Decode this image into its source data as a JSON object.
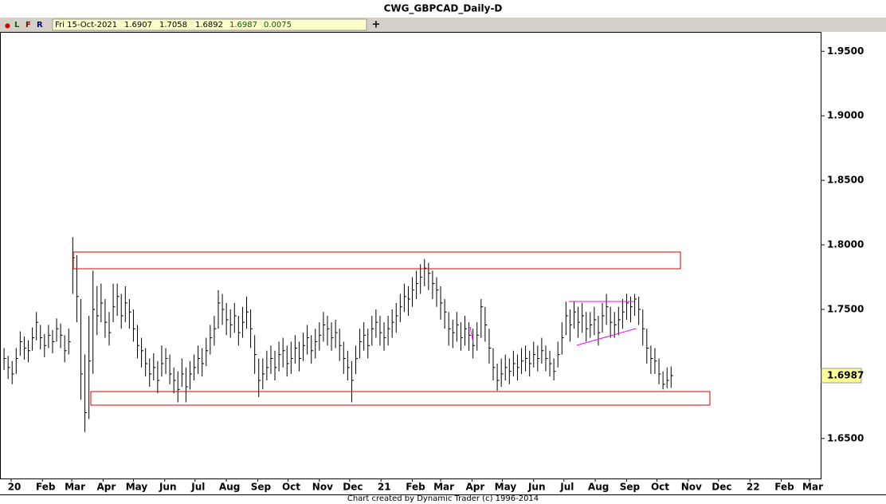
{
  "title": "CWG_GBPCAD_Daily-D",
  "toolbar": {
    "dot": "●",
    "buttons": [
      "L",
      "F",
      "R"
    ],
    "add": "+"
  },
  "info": {
    "date": "Fri 15-Oct-2021",
    "open": 1.6907,
    "high": 1.7058,
    "low": 1.6892,
    "close": 1.6987,
    "change": 0.0075
  },
  "footer": "Chart created by Dynamic Trader  (c) 1996-2014",
  "chart_data": {
    "type": "ohlc",
    "color": "#000000",
    "x": [
      -7,
      -3,
      1,
      5,
      9,
      13,
      17,
      21,
      25,
      29,
      33,
      37,
      41,
      45,
      49,
      53,
      57,
      61,
      65,
      69,
      73,
      77,
      81,
      85,
      89,
      93,
      97,
      101,
      105,
      109,
      113,
      117,
      121,
      125,
      129,
      133,
      137,
      141,
      145,
      149,
      153,
      157,
      161,
      165,
      169,
      173,
      177,
      181,
      185,
      189,
      193,
      197,
      201,
      205,
      209,
      213,
      217,
      221,
      225,
      229,
      233,
      237,
      241,
      245,
      249,
      253,
      257,
      261,
      265,
      269,
      273,
      277,
      281,
      285,
      289,
      293,
      297,
      301,
      305,
      309,
      313,
      317,
      321,
      325,
      329,
      333,
      337,
      341,
      345,
      349,
      353,
      357,
      361,
      365,
      369,
      373,
      377,
      381,
      385,
      389,
      393,
      397,
      401,
      405,
      409,
      413,
      417,
      421,
      425,
      429,
      433,
      437,
      441,
      445,
      449,
      453,
      457,
      461,
      465,
      469,
      473,
      477,
      481,
      485,
      489,
      493,
      497,
      501,
      505,
      509,
      513,
      517,
      521,
      525,
      529,
      533,
      537,
      541,
      545,
      549,
      553,
      557,
      561,
      565,
      569,
      573,
      577,
      581,
      585,
      589,
      593,
      597,
      601,
      605,
      609,
      613,
      617,
      621,
      625,
      629,
      633,
      637,
      641,
      645,
      649,
      653
    ],
    "high": [
      1.72,
      1.714,
      1.71,
      1.72,
      1.733,
      1.729,
      1.726,
      1.736,
      1.748,
      1.738,
      1.731,
      1.738,
      1.734,
      1.743,
      1.739,
      1.73,
      1.735,
      1.806,
      1.792,
      1.758,
      1.715,
      1.745,
      1.78,
      1.768,
      1.77,
      1.758,
      1.748,
      1.77,
      1.77,
      1.762,
      1.768,
      1.758,
      1.75,
      1.738,
      1.728,
      1.72,
      1.712,
      1.716,
      1.71,
      1.722,
      1.72,
      1.715,
      1.705,
      1.702,
      1.712,
      1.705,
      1.71,
      1.715,
      1.722,
      1.72,
      1.728,
      1.738,
      1.745,
      1.765,
      1.762,
      1.755,
      1.75,
      1.755,
      1.745,
      1.752,
      1.76,
      1.75,
      1.73,
      1.712,
      1.712,
      1.718,
      1.722,
      1.718,
      1.725,
      1.728,
      1.722,
      1.725,
      1.73,
      1.725,
      1.732,
      1.738,
      1.73,
      1.735,
      1.74,
      1.748,
      1.745,
      1.74,
      1.742,
      1.735,
      1.725,
      1.718,
      1.71,
      1.722,
      1.735,
      1.74,
      1.735,
      1.745,
      1.75,
      1.745,
      1.74,
      1.745,
      1.75,
      1.755,
      1.762,
      1.77,
      1.768,
      1.775,
      1.78,
      1.785,
      1.789,
      1.786,
      1.78,
      1.775,
      1.768,
      1.758,
      1.748,
      1.742,
      1.748,
      1.74,
      1.745,
      1.74,
      1.735,
      1.74,
      1.758,
      1.752,
      1.735,
      1.72,
      1.708,
      1.712,
      1.715,
      1.712,
      1.718,
      1.715,
      1.72,
      1.722,
      1.718,
      1.725,
      1.722,
      1.728,
      1.722,
      1.718,
      1.712,
      1.725,
      1.74,
      1.756,
      1.75,
      1.756,
      1.752,
      1.755,
      1.748,
      1.748,
      1.752,
      1.745,
      1.755,
      1.762,
      1.752,
      1.748,
      1.752,
      1.758,
      1.762,
      1.76,
      1.762,
      1.76,
      1.75,
      1.735,
      1.722,
      1.72,
      1.712,
      1.702,
      1.705,
      1.7058
    ],
    "low": [
      1.703,
      1.696,
      1.692,
      1.7,
      1.714,
      1.711,
      1.709,
      1.718,
      1.726,
      1.719,
      1.713,
      1.72,
      1.716,
      1.725,
      1.72,
      1.709,
      1.715,
      1.762,
      1.74,
      1.68,
      1.655,
      1.665,
      1.7,
      1.73,
      1.74,
      1.728,
      1.722,
      1.74,
      1.745,
      1.735,
      1.74,
      1.735,
      1.725,
      1.712,
      1.705,
      1.698,
      1.69,
      1.695,
      1.685,
      1.698,
      1.7,
      1.692,
      1.685,
      1.678,
      1.69,
      1.678,
      1.688,
      1.695,
      1.7,
      1.698,
      1.706,
      1.715,
      1.722,
      1.735,
      1.738,
      1.73,
      1.728,
      1.732,
      1.722,
      1.728,
      1.735,
      1.72,
      1.7,
      1.682,
      1.688,
      1.695,
      1.7,
      1.695,
      1.702,
      1.705,
      1.698,
      1.7,
      1.708,
      1.702,
      1.71,
      1.715,
      1.708,
      1.712,
      1.718,
      1.725,
      1.722,
      1.718,
      1.72,
      1.71,
      1.7,
      1.695,
      1.678,
      1.7,
      1.712,
      1.718,
      1.712,
      1.722,
      1.728,
      1.722,
      1.718,
      1.722,
      1.728,
      1.732,
      1.74,
      1.748,
      1.745,
      1.752,
      1.758,
      1.762,
      1.768,
      1.765,
      1.758,
      1.752,
      1.742,
      1.735,
      1.722,
      1.72,
      1.725,
      1.718,
      1.722,
      1.718,
      1.712,
      1.718,
      1.728,
      1.725,
      1.708,
      1.695,
      1.687,
      1.69,
      1.695,
      1.692,
      1.698,
      1.695,
      1.7,
      1.702,
      1.698,
      1.705,
      1.702,
      1.708,
      1.702,
      1.698,
      1.695,
      1.705,
      1.715,
      1.73,
      1.725,
      1.735,
      1.728,
      1.732,
      1.725,
      1.728,
      1.73,
      1.722,
      1.732,
      1.738,
      1.728,
      1.728,
      1.73,
      1.735,
      1.742,
      1.74,
      1.745,
      1.738,
      1.722,
      1.708,
      1.7,
      1.7,
      1.692,
      1.688,
      1.689,
      1.6892
    ],
    "close": [
      1.712,
      1.705,
      1.7,
      1.712,
      1.725,
      1.72,
      1.718,
      1.728,
      1.74,
      1.728,
      1.722,
      1.73,
      1.725,
      1.735,
      1.73,
      1.718,
      1.725,
      1.79,
      1.76,
      1.7,
      1.67,
      1.71,
      1.75,
      1.745,
      1.755,
      1.74,
      1.732,
      1.752,
      1.76,
      1.745,
      1.755,
      1.748,
      1.735,
      1.722,
      1.718,
      1.708,
      1.7,
      1.705,
      1.695,
      1.708,
      1.712,
      1.7,
      1.695,
      1.688,
      1.7,
      1.69,
      1.7,
      1.705,
      1.712,
      1.708,
      1.718,
      1.728,
      1.735,
      1.755,
      1.75,
      1.742,
      1.738,
      1.745,
      1.732,
      1.74,
      1.748,
      1.735,
      1.715,
      1.695,
      1.7,
      1.705,
      1.712,
      1.705,
      1.715,
      1.718,
      1.708,
      1.712,
      1.72,
      1.712,
      1.722,
      1.728,
      1.718,
      1.725,
      1.73,
      1.738,
      1.735,
      1.728,
      1.732,
      1.722,
      1.712,
      1.705,
      1.695,
      1.712,
      1.725,
      1.73,
      1.722,
      1.735,
      1.74,
      1.732,
      1.728,
      1.735,
      1.74,
      1.745,
      1.752,
      1.76,
      1.758,
      1.765,
      1.77,
      1.775,
      1.782,
      1.778,
      1.77,
      1.765,
      1.755,
      1.748,
      1.735,
      1.732,
      1.738,
      1.728,
      1.735,
      1.73,
      1.722,
      1.73,
      1.752,
      1.738,
      1.72,
      1.705,
      1.695,
      1.7,
      1.705,
      1.702,
      1.708,
      1.705,
      1.71,
      1.712,
      1.708,
      1.715,
      1.712,
      1.718,
      1.712,
      1.708,
      1.702,
      1.715,
      1.728,
      1.745,
      1.738,
      1.748,
      1.74,
      1.745,
      1.735,
      1.738,
      1.742,
      1.732,
      1.745,
      1.752,
      1.74,
      1.738,
      1.742,
      1.748,
      1.755,
      1.752,
      1.758,
      1.75,
      1.735,
      1.72,
      1.712,
      1.71,
      1.7,
      1.692,
      1.695,
      1.6987
    ],
    "xlim": [
      -11,
      801
    ],
    "xticks": [
      {
        "value": 0,
        "label": "20"
      },
      {
        "value": 31,
        "label": "Feb"
      },
      {
        "value": 60,
        "label": "Mar"
      },
      {
        "value": 91,
        "label": "Apr"
      },
      {
        "value": 121,
        "label": "May"
      },
      {
        "value": 152,
        "label": "Jun"
      },
      {
        "value": 182,
        "label": "Jul"
      },
      {
        "value": 213,
        "label": "Aug"
      },
      {
        "value": 244,
        "label": "Sep"
      },
      {
        "value": 274,
        "label": "Oct"
      },
      {
        "value": 305,
        "label": "Nov"
      },
      {
        "value": 335,
        "label": "Dec"
      },
      {
        "value": 366,
        "label": "21"
      },
      {
        "value": 397,
        "label": "Feb"
      },
      {
        "value": 425,
        "label": "Mar"
      },
      {
        "value": 456,
        "label": "Apr"
      },
      {
        "value": 486,
        "label": "May"
      },
      {
        "value": 517,
        "label": "Jun"
      },
      {
        "value": 547,
        "label": "Jul"
      },
      {
        "value": 578,
        "label": "Aug"
      },
      {
        "value": 609,
        "label": "Sep"
      },
      {
        "value": 639,
        "label": "Oct"
      },
      {
        "value": 670,
        "label": "Nov"
      },
      {
        "value": 700,
        "label": "Dec"
      },
      {
        "value": 731,
        "label": "22"
      },
      {
        "value": 762,
        "label": "Feb"
      },
      {
        "value": 790,
        "label": "Mar"
      }
    ],
    "ylim": [
      1.619,
      1.965
    ],
    "yticks": [
      {
        "value": 1.65,
        "label": "1.6500"
      },
      {
        "value": 1.75,
        "label": "1.7500"
      },
      {
        "value": 1.8,
        "label": "1.8000"
      },
      {
        "value": 1.85,
        "label": "1.8500"
      },
      {
        "value": 1.9,
        "label": "1.9000"
      },
      {
        "value": 1.95,
        "label": "1.9500"
      }
    ],
    "last_color": "#ffff99"
  }
}
